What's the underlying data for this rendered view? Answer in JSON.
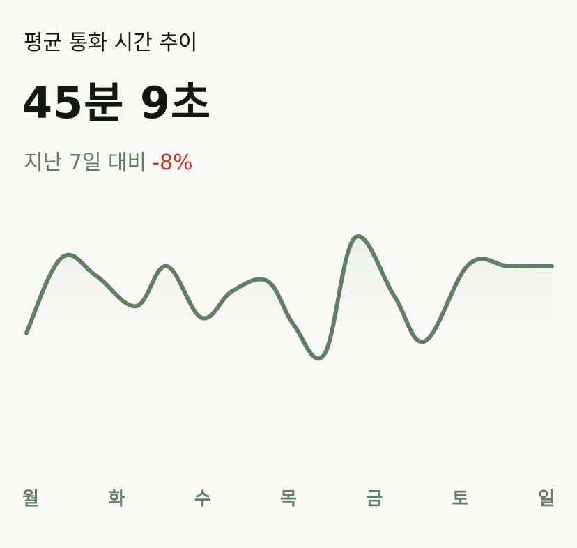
{
  "header": {
    "title": "평균 통화 시간 추이",
    "value": "45분 9초",
    "compare_label": "지난 7일 대비",
    "compare_delta": "-8%"
  },
  "colors": {
    "line": "#5f8061",
    "delta_negative": "#e12b1a",
    "axis_label": "#5f8061",
    "background": "#f9f9f7"
  },
  "chart_data": {
    "type": "line",
    "categories": [
      "월",
      "화",
      "수",
      "목",
      "금",
      "토",
      "일"
    ],
    "x": [
      0,
      0.4,
      0.8,
      1.25,
      1.6,
      2.0,
      2.35,
      2.75,
      3.05,
      3.4,
      3.75,
      4.2,
      4.55,
      5.05,
      5.5,
      5.9,
      6.0
    ],
    "values": [
      30,
      75,
      64,
      46,
      70,
      39,
      55,
      61,
      35,
      17,
      87,
      52,
      25,
      71,
      70,
      70,
      70
    ],
    "ylim": [
      0,
      100
    ],
    "grid": false,
    "legend": "none",
    "area_fill": true
  }
}
